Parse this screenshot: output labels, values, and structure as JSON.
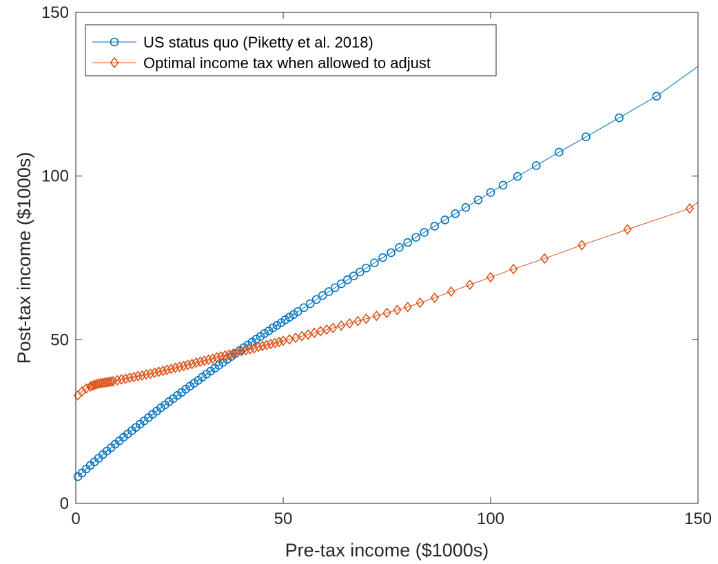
{
  "chart_data": {
    "type": "line",
    "title": "",
    "xlabel": "Pre-tax income ($1000s)",
    "ylabel": "Post-tax income ($1000s)",
    "xlim": [
      0,
      150
    ],
    "ylim": [
      0,
      150
    ],
    "xticks": [
      0,
      50,
      100,
      150
    ],
    "yticks": [
      0,
      50,
      100,
      150
    ],
    "grid": false,
    "legend_position": "top-left",
    "series": [
      {
        "name": "US status quo (Piketty et al. 2018)",
        "color": "#0072BD",
        "marker": "circle",
        "line_end": [
          150,
          133.5
        ],
        "x": [
          0.5,
          1.5,
          2.5,
          3.5,
          4.5,
          5.5,
          6.5,
          7.5,
          8.5,
          9.5,
          10.5,
          11.5,
          12.5,
          13.5,
          14.5,
          15.5,
          16.5,
          17.5,
          18.5,
          19.5,
          20.5,
          21.5,
          22.5,
          23.5,
          24.5,
          25.5,
          26.5,
          27.5,
          28.5,
          29.5,
          30.5,
          31.5,
          32.5,
          33.5,
          34.5,
          35.5,
          36.5,
          37.5,
          38.5,
          39.5,
          40.5,
          41.5,
          42.5,
          43.5,
          44.5,
          45.5,
          46.5,
          47.5,
          48.5,
          49.5,
          50.5,
          51.5,
          52.5,
          53.5,
          55,
          56.5,
          58,
          59.5,
          61,
          62.5,
          64,
          65.5,
          67,
          68.5,
          70,
          72,
          74,
          76,
          78,
          80,
          82,
          84,
          86.5,
          89,
          91.5,
          94,
          97,
          100,
          103,
          106.5,
          111,
          116.5,
          123,
          131,
          140
        ],
        "y": [
          8.2,
          9.3,
          10.5,
          11.6,
          12.7,
          13.8,
          14.9,
          16.0,
          17.0,
          18.1,
          19.1,
          20.2,
          21.2,
          22.2,
          23.2,
          24.2,
          25.2,
          26.2,
          27.2,
          28.2,
          29.2,
          30.1,
          31.1,
          32.0,
          33.0,
          33.9,
          34.9,
          35.8,
          36.7,
          37.6,
          38.6,
          39.5,
          40.4,
          41.3,
          42.2,
          43.1,
          44.0,
          44.9,
          45.8,
          46.7,
          47.6,
          48.4,
          49.3,
          50.2,
          51.0,
          51.9,
          52.7,
          53.6,
          54.4,
          55.2,
          56.1,
          56.9,
          57.7,
          58.6,
          59.8,
          61.0,
          62.3,
          63.5,
          64.7,
          65.9,
          67.1,
          68.3,
          69.5,
          70.7,
          71.9,
          73.5,
          75.1,
          76.6,
          78.2,
          79.7,
          81.3,
          82.8,
          84.7,
          86.6,
          88.5,
          90.4,
          92.7,
          95.0,
          97.2,
          99.9,
          103.2,
          107.3,
          112.0,
          117.8,
          124.4
        ]
      },
      {
        "name": "Optimal income tax when allowed to adjust",
        "color": "#D95319",
        "marker": "diamond",
        "line_end": [
          150,
          92
        ],
        "x": [
          0.5,
          1.5,
          2.5,
          3.5,
          4.0,
          4.5,
          5.0,
          5.5,
          6.0,
          6.5,
          7.0,
          7.5,
          8.0,
          8.5,
          9.0,
          10.0,
          11.0,
          12.0,
          13.0,
          14.0,
          15.0,
          16.0,
          17.0,
          18.0,
          19.0,
          20.0,
          21.0,
          22.0,
          23.0,
          24.0,
          25.0,
          26.0,
          27.0,
          28.0,
          29.0,
          30.0,
          31.0,
          32.0,
          33.0,
          34.0,
          35.0,
          36.0,
          37.0,
          38.0,
          39.0,
          40.0,
          41.0,
          42.0,
          43.0,
          44.0,
          45.0,
          46.0,
          47.0,
          48.0,
          49.0,
          50.0,
          51.5,
          53.0,
          54.5,
          56.0,
          57.5,
          59.0,
          60.5,
          62.0,
          64.0,
          66.0,
          68.0,
          70.0,
          72.5,
          75.0,
          77.5,
          80.0,
          83.0,
          86.5,
          90.5,
          95.0,
          100.0,
          105.5,
          113.0,
          122.0,
          133.0,
          148.0
        ],
        "y": [
          33.0,
          34.2,
          35.1,
          35.7,
          36.0,
          36.2,
          36.4,
          36.6,
          36.7,
          36.8,
          36.9,
          37.0,
          37.1,
          37.2,
          37.3,
          37.6,
          37.9,
          38.1,
          38.4,
          38.6,
          38.9,
          39.1,
          39.4,
          39.6,
          39.9,
          40.2,
          40.5,
          40.8,
          41.1,
          41.4,
          41.7,
          42.0,
          42.3,
          42.6,
          43.0,
          43.3,
          43.6,
          43.9,
          44.2,
          44.6,
          44.9,
          45.2,
          45.5,
          45.8,
          46.2,
          46.5,
          46.8,
          47.1,
          47.4,
          47.8,
          48.1,
          48.4,
          48.7,
          49.0,
          49.3,
          49.7,
          50.1,
          50.6,
          51.1,
          51.6,
          52.1,
          52.6,
          53.1,
          53.6,
          54.3,
          55.0,
          55.7,
          56.4,
          57.3,
          58.2,
          59.1,
          60.0,
          61.3,
          62.8,
          64.7,
          66.8,
          69.1,
          71.6,
          74.8,
          78.9,
          83.7,
          90.1
        ]
      }
    ]
  }
}
